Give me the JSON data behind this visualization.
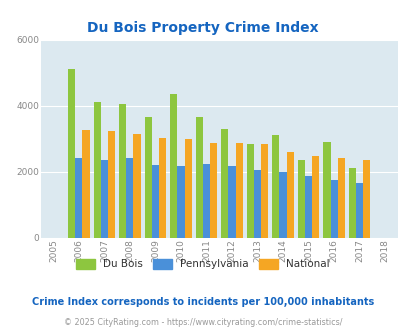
{
  "title": "Du Bois Property Crime Index",
  "years": [
    2005,
    2006,
    2007,
    2008,
    2009,
    2010,
    2011,
    2012,
    2013,
    2014,
    2015,
    2016,
    2017,
    2018
  ],
  "dubois": [
    0,
    5100,
    4100,
    4050,
    3650,
    4350,
    3650,
    3300,
    2850,
    3100,
    2350,
    2900,
    2100,
    0
  ],
  "pennsylvania": [
    0,
    2400,
    2350,
    2400,
    2200,
    2175,
    2225,
    2175,
    2050,
    1975,
    1875,
    1750,
    1650,
    0
  ],
  "national": [
    0,
    3275,
    3225,
    3150,
    3025,
    2975,
    2875,
    2875,
    2825,
    2600,
    2475,
    2425,
    2350,
    0
  ],
  "colors": {
    "dubois": "#8DC63F",
    "pennsylvania": "#4A90D9",
    "national": "#F5A623"
  },
  "ylim": [
    0,
    6000
  ],
  "yticks": [
    0,
    2000,
    4000,
    6000
  ],
  "bg_color": "#DCE9F0",
  "title_color": "#1565C0",
  "subtitle": "Crime Index corresponds to incidents per 100,000 inhabitants",
  "footer": "© 2025 CityRating.com - https://www.cityrating.com/crime-statistics/",
  "subtitle_color": "#1565C0",
  "footer_color": "#999999",
  "bar_width": 0.28
}
